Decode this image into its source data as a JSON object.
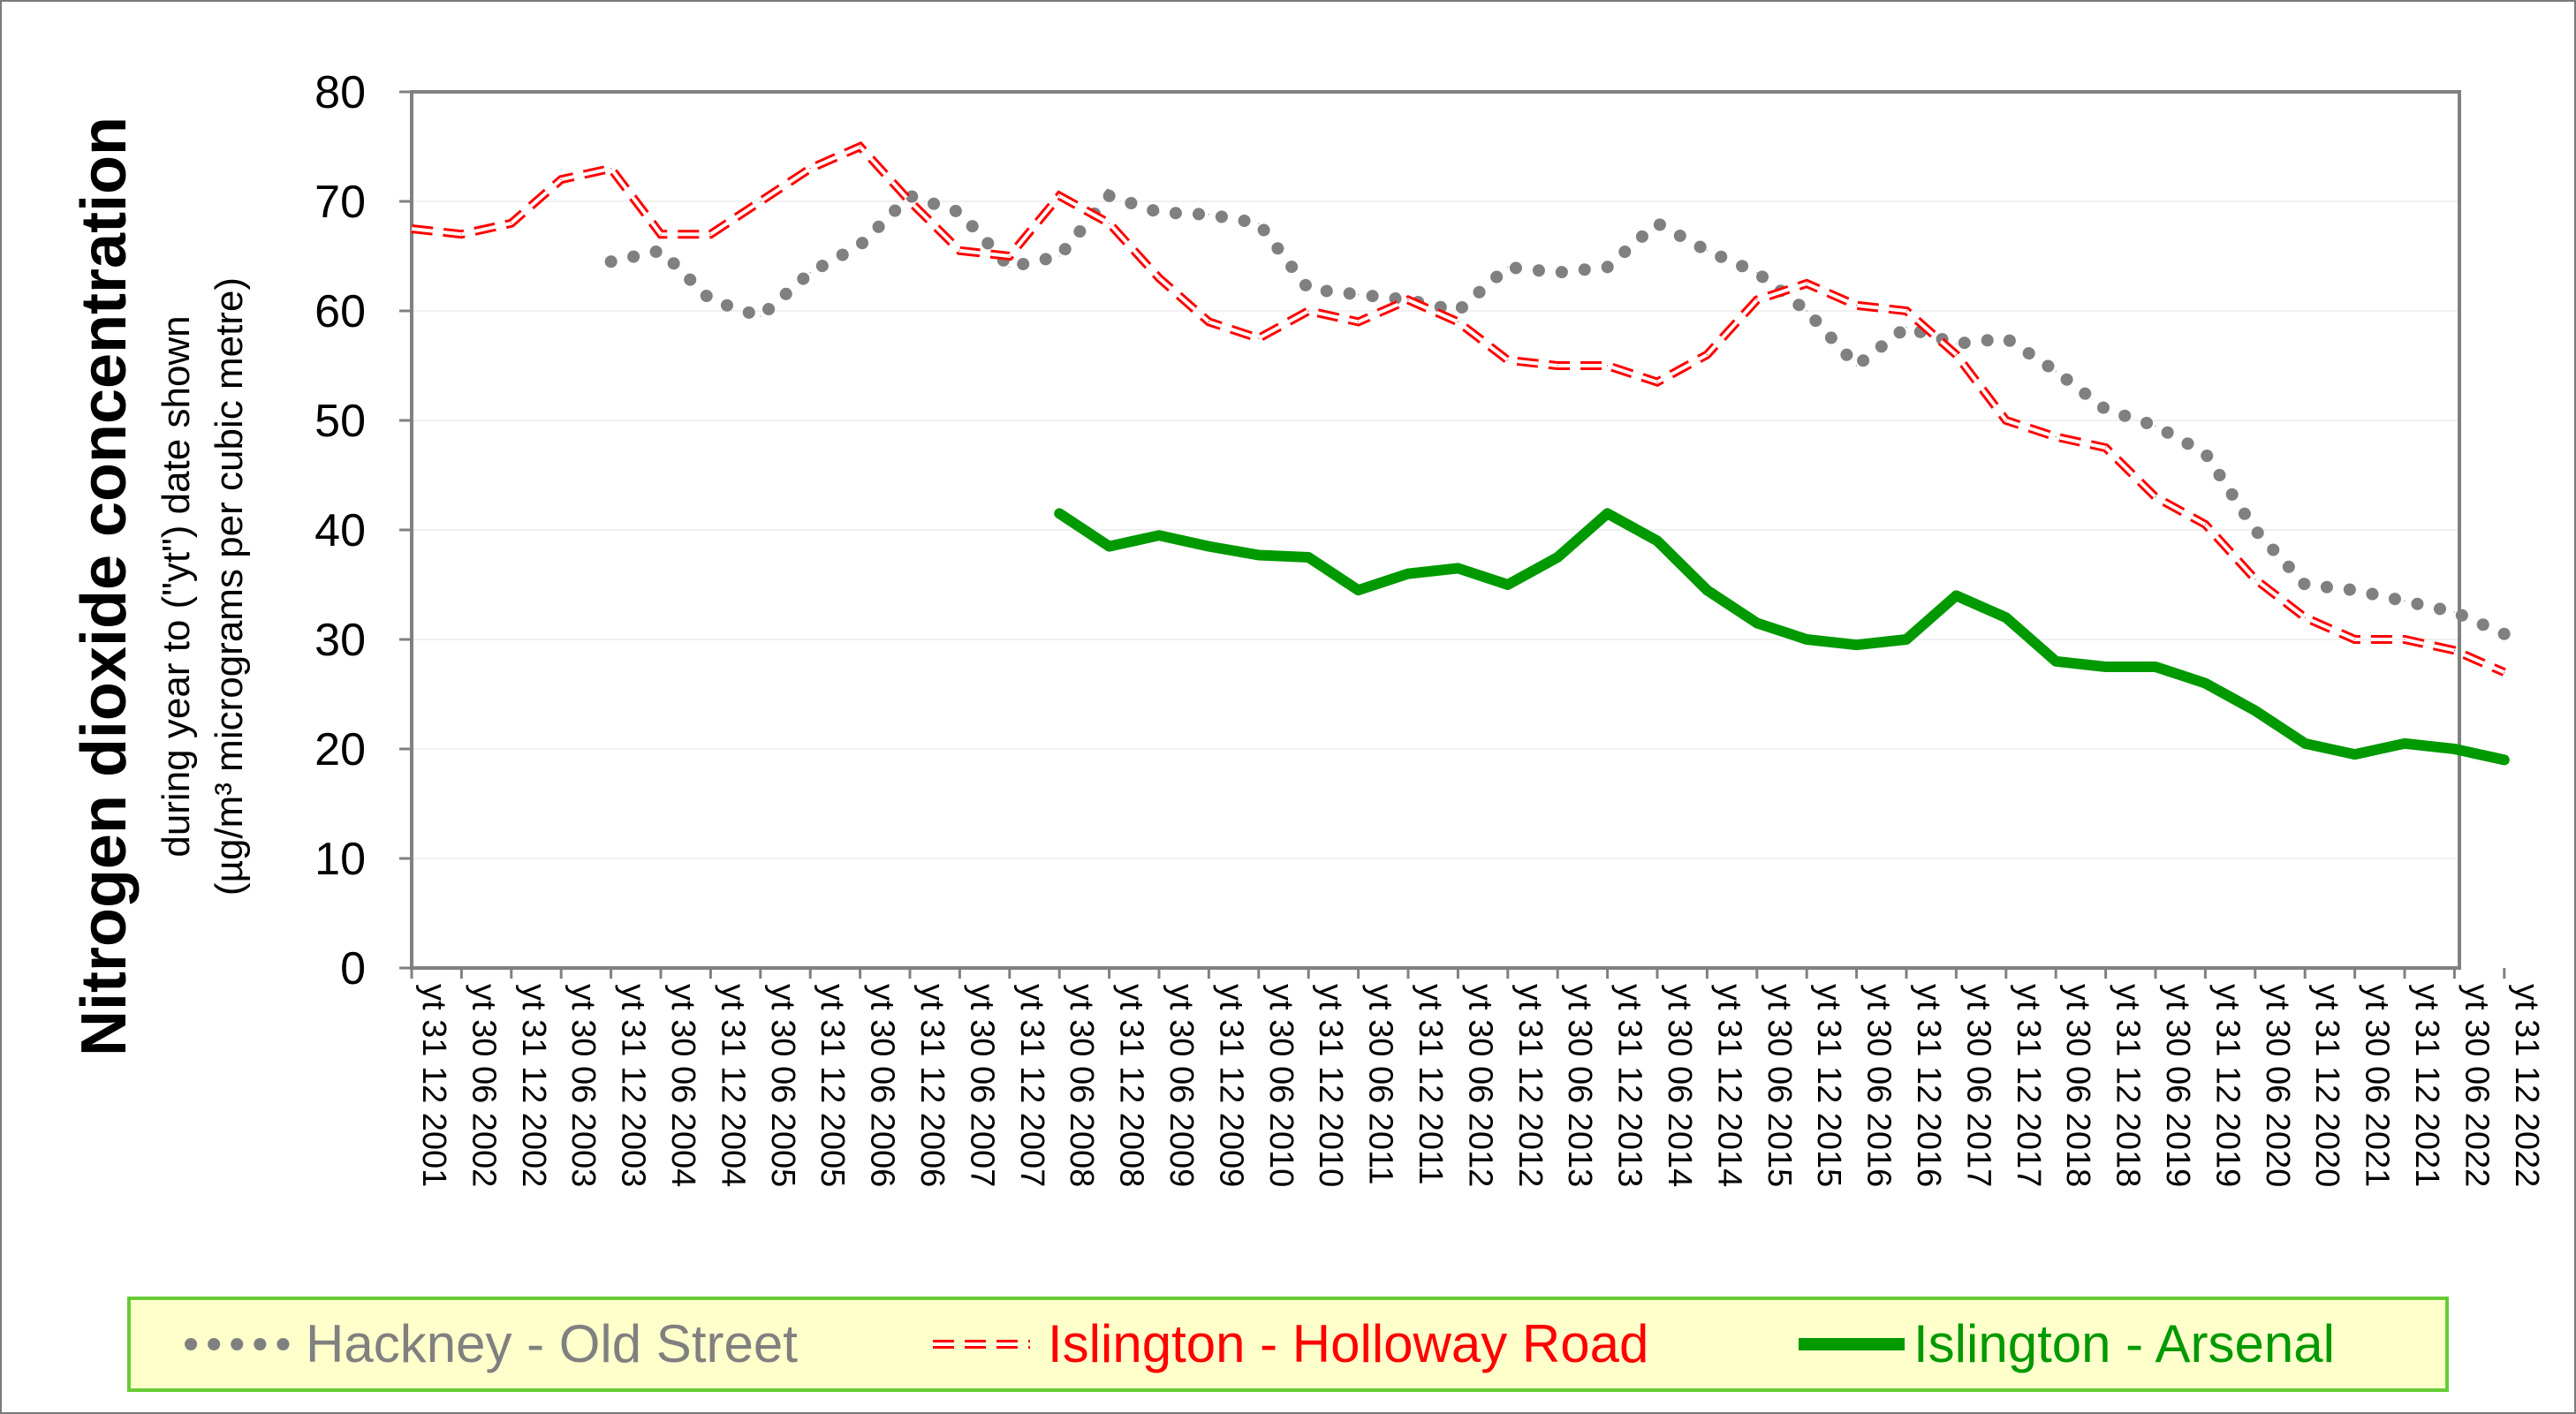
{
  "chart_data": {
    "type": "line",
    "title": "",
    "ylabel": "Nitrogen dioxide concentration",
    "ylabel_sub1": "during year to (\"yt\") date shown",
    "ylabel_sub2": "(µg/m³ micrograms per cubic metre)",
    "ylim": [
      0,
      80
    ],
    "yticks": [
      0,
      10,
      20,
      30,
      40,
      50,
      60,
      70,
      80
    ],
    "grid": true,
    "legend_position": "bottom",
    "x_labels": [
      "yt 31 12 2001",
      "yt 30 06 2002",
      "yt 31 12 2002",
      "yt 30 06 2003",
      "yt 31 12 2003",
      "yt 30 06 2004",
      "yt 31 12 2004",
      "yt 30 06 2005",
      "yt 31 12 2005",
      "yt 30 06 2006",
      "yt 31 12 2006",
      "yt 30 06 2007",
      "yt 31 12 2007",
      "yt 30 06 2008",
      "yt 31 12 2008",
      "yt 30 06 2009",
      "yt 31 12 2009",
      "yt 30 06 2010",
      "yt 31 12 2010",
      "yt 30 06 2011",
      "yt 31 12 2011",
      "yt 30 06 2012",
      "yt 31 12 2012",
      "yt 30 06 2013",
      "yt 31 12 2013",
      "yt 30 06 2014",
      "yt 31 12 2014",
      "yt 30 06 2015",
      "yt 31 12 2015",
      "yt 30 06 2016",
      "yt 31 12 2016",
      "yt 30 06 2017",
      "yt 31 12 2017",
      "yt 30 06 2018",
      "yt 31 12 2018",
      "yt 30 06 2019",
      "yt 31 12 2019",
      "yt 30 06 2020",
      "yt 31 12 2020",
      "yt 30 06 2021",
      "yt 31 12 2021",
      "yt 30 06 2022",
      "yt 31 12 2022"
    ],
    "series": [
      {
        "name": "Hackney - Old Street",
        "color": "#808080",
        "style": "dotted",
        "values": [
          null,
          null,
          null,
          null,
          64.5,
          65.5,
          61,
          59.5,
          63.5,
          66,
          70.5,
          69,
          64,
          65,
          70.5,
          69,
          68.8,
          68,
          62,
          61.5,
          61,
          60,
          64,
          63.5,
          64,
          68,
          65.5,
          63.5,
          60,
          55,
          58.5,
          57,
          57.5,
          54.5,
          51,
          49.5,
          47,
          40,
          35,
          34.5,
          33.5,
          32.5,
          30.5
        ]
      },
      {
        "name": "Islington - Holloway Road",
        "color": "#ff0000",
        "style": "dashed",
        "values": [
          67.5,
          67,
          68,
          72,
          73,
          67,
          67,
          70,
          73,
          75,
          70,
          65.5,
          65,
          70.5,
          68,
          63,
          59,
          57.5,
          60,
          59,
          61,
          59,
          55.5,
          55,
          55,
          53.5,
          56,
          61,
          62.5,
          60.5,
          60,
          56,
          50,
          48.5,
          47.5,
          43,
          40.5,
          35.5,
          32,
          30,
          30,
          29,
          27
        ]
      },
      {
        "name": "Islington - Arsenal",
        "color": "#009900",
        "style": "solid",
        "values": [
          null,
          null,
          null,
          null,
          null,
          null,
          null,
          null,
          null,
          null,
          null,
          null,
          null,
          41.5,
          38.5,
          39.5,
          38.5,
          37.7,
          37.5,
          34.5,
          36,
          36.5,
          35,
          37.5,
          41.5,
          39,
          34.5,
          31.5,
          30,
          29.5,
          30,
          34,
          32,
          28,
          27.5,
          27.5,
          26,
          23.5,
          20.5,
          19.5,
          20.5,
          20,
          19
        ]
      }
    ]
  }
}
